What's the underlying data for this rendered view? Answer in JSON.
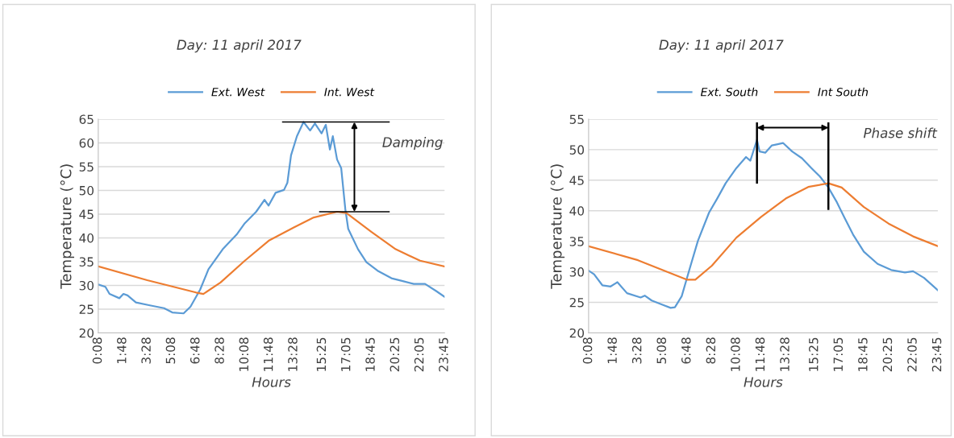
{
  "chart_data": [
    {
      "type": "line",
      "title": "Day: 11 april 2017",
      "xlabel": "Hours",
      "ylabel": "Temperature (°C)",
      "annotations": [
        "Damping"
      ],
      "legend": "top",
      "grid": "y",
      "xlim": [
        0.133,
        23.75
      ],
      "xticks": [
        {
          "value": 0.133,
          "label": "0:08"
        },
        {
          "value": 1.8,
          "label": "1:48"
        },
        {
          "value": 3.467,
          "label": "3:28"
        },
        {
          "value": 5.133,
          "label": "5:08"
        },
        {
          "value": 6.8,
          "label": "6:48"
        },
        {
          "value": 8.467,
          "label": "8:28"
        },
        {
          "value": 10.133,
          "label": "10:08"
        },
        {
          "value": 11.8,
          "label": "11:48"
        },
        {
          "value": 13.467,
          "label": "13:28"
        },
        {
          "value": 15.417,
          "label": "15:25"
        },
        {
          "value": 17.083,
          "label": "17:05"
        },
        {
          "value": 18.75,
          "label": "18:45"
        },
        {
          "value": 20.417,
          "label": "20:25"
        },
        {
          "value": 22.083,
          "label": "22:05"
        },
        {
          "value": 23.75,
          "label": "23:45"
        }
      ],
      "ylim": [
        20,
        65
      ],
      "yticks": [
        20,
        25,
        30,
        35,
        40,
        45,
        50,
        55,
        60,
        65
      ],
      "series": [
        {
          "name": "Ext. West",
          "color": "#5b9bd5",
          "x": [
            0.133,
            0.62,
            0.9,
            1.57,
            1.85,
            2.13,
            2.7,
            3.65,
            4.62,
            5.18,
            5.95,
            6.42,
            7.08,
            7.65,
            8.62,
            9.57,
            10.13,
            10.9,
            11.47,
            11.75,
            12.23,
            12.8,
            13.03,
            13.28,
            13.68,
            14.13,
            14.58,
            14.91,
            15.36,
            15.65,
            15.93,
            16.13,
            16.42,
            16.7,
            16.98,
            17.18,
            17.85,
            18.42,
            19.18,
            20.13,
            20.9,
            21.65,
            22.42,
            23.18,
            23.75
          ],
          "values": [
            30.2,
            29.7,
            28.2,
            27.3,
            28.2,
            27.9,
            26.4,
            25.8,
            25.2,
            24.3,
            24.1,
            25.5,
            29.1,
            33.4,
            37.6,
            40.7,
            43.1,
            45.5,
            48.0,
            46.8,
            49.5,
            50.1,
            51.6,
            57.4,
            61.4,
            64.4,
            62.6,
            64.1,
            62.0,
            63.8,
            58.6,
            61.4,
            56.5,
            54.7,
            46.1,
            41.9,
            37.6,
            34.9,
            33.1,
            31.5,
            30.9,
            30.3,
            30.3,
            28.8,
            27.6
          ]
        },
        {
          "name": "Int. West",
          "color": "#ed7d31",
          "x": [
            0.133,
            3.47,
            6.8,
            7.3,
            8.47,
            10.13,
            11.8,
            13.47,
            14.83,
            16.42,
            17.08,
            18.75,
            20.42,
            22.08,
            23.75
          ],
          "values": [
            34.0,
            31.1,
            28.5,
            28.2,
            30.6,
            35.2,
            39.5,
            42.2,
            44.3,
            45.5,
            45.2,
            41.3,
            37.6,
            35.2,
            34.0
          ]
        }
      ]
    },
    {
      "type": "line",
      "title": "Day: 11 april 2017",
      "xlabel": "Hours",
      "ylabel": "Temperature (°C)",
      "annotations": [
        "Phase shift"
      ],
      "legend": "top",
      "grid": "y",
      "xlim": [
        0.133,
        23.75
      ],
      "xticks": [
        {
          "value": 0.133,
          "label": "0:08"
        },
        {
          "value": 1.8,
          "label": "1:48"
        },
        {
          "value": 3.467,
          "label": "3:28"
        },
        {
          "value": 5.133,
          "label": "5:08"
        },
        {
          "value": 6.8,
          "label": "6:48"
        },
        {
          "value": 8.467,
          "label": "8:28"
        },
        {
          "value": 10.133,
          "label": "10:08"
        },
        {
          "value": 11.8,
          "label": "11:48"
        },
        {
          "value": 13.467,
          "label": "13:28"
        },
        {
          "value": 15.417,
          "label": "15:25"
        },
        {
          "value": 17.083,
          "label": "17:05"
        },
        {
          "value": 18.75,
          "label": "18:45"
        },
        {
          "value": 20.417,
          "label": "20:25"
        },
        {
          "value": 22.083,
          "label": "22:05"
        },
        {
          "value": 23.75,
          "label": "23:45"
        }
      ],
      "ylim": [
        20,
        55
      ],
      "yticks": [
        20,
        25,
        30,
        35,
        40,
        45,
        50,
        55
      ],
      "series": [
        {
          "name": "Ext. South",
          "color": "#5b9bd5",
          "x": [
            0.133,
            0.5,
            1.06,
            1.62,
            2.08,
            2.73,
            3.65,
            3.93,
            4.4,
            5.13,
            5.68,
            5.97,
            6.43,
            6.98,
            7.53,
            8.28,
            8.83,
            9.4,
            10.13,
            10.78,
            11.07,
            11.52,
            11.7,
            12.08,
            12.53,
            12.92,
            13.28,
            13.9,
            14.56,
            15.2,
            15.78,
            16.35,
            16.9,
            17.45,
            18.02,
            18.75,
            19.68,
            20.6,
            21.53,
            22.08,
            22.82,
            23.75
          ],
          "values": [
            30.2,
            29.6,
            27.8,
            27.6,
            28.3,
            26.5,
            25.8,
            26.1,
            25.3,
            24.6,
            24.1,
            24.2,
            26.0,
            30.6,
            35.1,
            39.7,
            42.0,
            44.5,
            47.0,
            48.8,
            48.2,
            51.6,
            49.7,
            49.5,
            50.7,
            50.9,
            51.1,
            49.7,
            48.6,
            47.0,
            45.6,
            43.8,
            41.5,
            38.8,
            36.1,
            33.3,
            31.3,
            30.3,
            29.9,
            30.1,
            29.0,
            27.0
          ]
        },
        {
          "name": "Int South",
          "color": "#ed7d31",
          "x": [
            0.133,
            3.47,
            6.8,
            7.35,
            8.47,
            10.13,
            11.8,
            13.47,
            14.99,
            16.35,
            17.25,
            18.75,
            20.42,
            22.08,
            23.75
          ],
          "values": [
            34.2,
            31.9,
            28.7,
            28.7,
            31.0,
            35.6,
            39.0,
            42.0,
            43.9,
            44.5,
            43.8,
            40.6,
            37.9,
            35.8,
            34.2
          ]
        }
      ]
    }
  ]
}
